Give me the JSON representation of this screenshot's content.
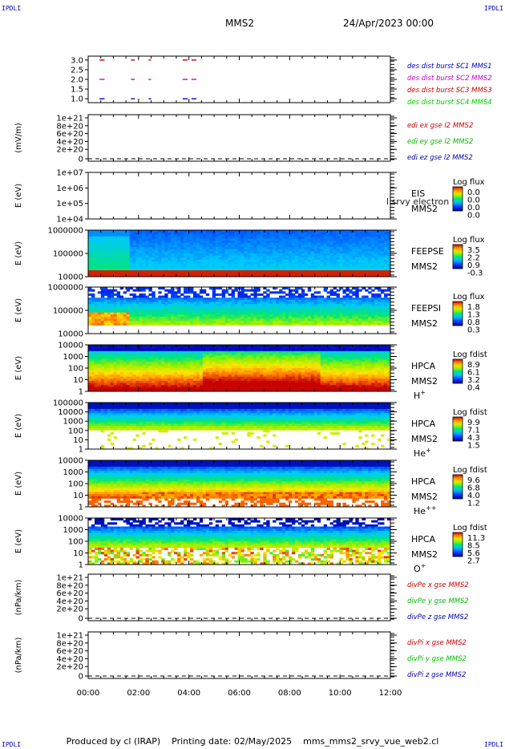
{
  "corner_tag": "IPDLI",
  "header": {
    "mission": "MMS2",
    "date": "24/Apr/2023 00:00"
  },
  "footer": {
    "produced_by": "Produced by cl (IRAP)",
    "printing_date": "Printing date: 02/May/2025",
    "file": "mms_mms2_srvy_vue_web2.cl"
  },
  "chart_data": [
    {
      "id": "burst",
      "type": "scatter",
      "x_axis": {
        "ticks": [
          "00:00",
          "02:00",
          "04:00",
          "06:00",
          "08:00",
          "10:00",
          "12:00"
        ],
        "range_hours": [
          0,
          12
        ]
      },
      "yticks": [
        "3.0",
        "2.5",
        "2.0",
        "1.5",
        "1.0"
      ],
      "ylim": [
        0.8,
        3.2
      ],
      "legend": [
        {
          "label": "des dist burst SC1 MMS1",
          "color": "#0000cc"
        },
        {
          "label": "des dist burst SC2 MMS2",
          "color": "#cc00cc"
        },
        {
          "label": "des dist burst SC3 MMS3",
          "color": "#cc0000"
        },
        {
          "label": "des dist burst SC4 MMS4",
          "color": "#00cc00"
        }
      ],
      "series": [
        {
          "level": 3.0,
          "color": "#cc0000",
          "intervals_hours": [
            [
              0.45,
              0.65
            ],
            [
              1.7,
              1.85
            ],
            [
              2.4,
              2.5
            ],
            [
              3.75,
              3.95
            ],
            [
              4.1,
              4.3
            ]
          ]
        },
        {
          "level": 2.0,
          "color": "#cc00cc",
          "intervals_hours": [
            [
              0.45,
              0.65
            ],
            [
              1.7,
              1.85
            ],
            [
              2.4,
              2.5
            ],
            [
              3.75,
              3.95
            ],
            [
              4.1,
              4.3
            ]
          ]
        },
        {
          "level": 1.0,
          "color": "#0000cc",
          "intervals_hours": [
            [
              0.45,
              0.65
            ],
            [
              1.7,
              1.85
            ],
            [
              2.4,
              2.5
            ],
            [
              3.75,
              3.95
            ],
            [
              4.1,
              4.3
            ]
          ]
        }
      ]
    },
    {
      "id": "edi",
      "type": "line",
      "ylabel": "(mV/m)",
      "yticks": [
        "1e+21",
        "8e+20",
        "6e+20",
        "4e+20",
        "2e+20",
        "0"
      ],
      "legend": [
        {
          "label": "edi ex gse l2 MMS2",
          "color": "#cc0000"
        },
        {
          "label": "edi ey gse l2 MMS2",
          "color": "#00bb00"
        },
        {
          "label": "edi ez gse l2 MMS2",
          "color": "#0000aa"
        }
      ]
    },
    {
      "id": "eis",
      "type": "heatmap",
      "ylabel": "E (eV)",
      "yticks": [
        "1e+07",
        "1e+06",
        "1e+05",
        "1e+04"
      ],
      "instrument": [
        "EIS",
        "MMS2"
      ],
      "overlay_text": "l srvy electron to",
      "cbar_title": "Log flux",
      "cbar_ticks": [
        "0.0",
        "0.0",
        "0.0",
        "0.0"
      ]
    },
    {
      "id": "feepse",
      "type": "heatmap",
      "ylabel": "E (eV)",
      "yticks": [
        "1000000",
        "100000",
        "10000"
      ],
      "instrument": [
        "FEEPSE",
        "MMS2"
      ],
      "cbar_title": "Log flux",
      "cbar_ticks": [
        "3.5",
        "2.2",
        "0.9",
        "-0.3"
      ]
    },
    {
      "id": "feepsi",
      "type": "heatmap",
      "ylabel": "E (eV)",
      "yticks": [
        "1000000",
        "100000",
        "10000"
      ],
      "instrument": [
        "FEEPSI",
        "MMS2"
      ],
      "cbar_title": "Log flux",
      "cbar_ticks": [
        "1.8",
        "1.3",
        "0.8",
        "0.3"
      ]
    },
    {
      "id": "hpca_h",
      "type": "heatmap",
      "ylabel": "E (eV)",
      "yticks": [
        "10000",
        "1000",
        "100",
        "10",
        "1"
      ],
      "instrument": [
        "HPCA",
        "MMS2"
      ],
      "species": "H",
      "species_sup": "+",
      "cbar_title": "Log fdist",
      "cbar_ticks": [
        "8.9",
        "6.1",
        "3.2",
        "0.4"
      ]
    },
    {
      "id": "hpca_he",
      "type": "heatmap",
      "ylabel": "E (eV)",
      "yticks": [
        "100000",
        "10000",
        "1000",
        "100",
        "10",
        "1"
      ],
      "instrument": [
        "HPCA",
        "MMS2"
      ],
      "species": "He",
      "species_sup": "+",
      "cbar_title": "Log fdist",
      "cbar_ticks": [
        "9.9",
        "7.1",
        "4.3",
        "1.5"
      ]
    },
    {
      "id": "hpca_hepp",
      "type": "heatmap",
      "ylabel": "E (eV)",
      "yticks": [
        "10000",
        "1000",
        "100",
        "10",
        "1"
      ],
      "instrument": [
        "HPCA",
        "MMS2"
      ],
      "species": "He",
      "species_sup": "++",
      "cbar_title": "Log fdist",
      "cbar_ticks": [
        "9.6",
        "6.8",
        "4.0",
        "1.2"
      ]
    },
    {
      "id": "hpca_o",
      "type": "heatmap",
      "ylabel": "E (eV)",
      "yticks": [
        "10000",
        "1000",
        "100",
        "10",
        "1"
      ],
      "instrument": [
        "HPCA",
        "MMS2"
      ],
      "species": "O",
      "species_sup": "+",
      "cbar_title": "Log fdist",
      "cbar_ticks": [
        "11.3",
        "8.5",
        "5.6",
        "2.7"
      ]
    },
    {
      "id": "divpe",
      "type": "line",
      "ylabel": "(nPa/km)",
      "yticks": [
        "1e+21",
        "8e+20",
        "6e+20",
        "4e+20",
        "2e+20",
        "0"
      ],
      "legend": [
        {
          "label": "divPe x gse MMS2",
          "color": "#cc0000"
        },
        {
          "label": "divPe y gse MMS2",
          "color": "#00bb00"
        },
        {
          "label": "divPe z gse MMS2",
          "color": "#0000aa"
        }
      ]
    },
    {
      "id": "divpi",
      "type": "line",
      "ylabel": "(nPa/km)",
      "yticks": [
        "1e+21",
        "8e+20",
        "6e+20",
        "4e+20",
        "2e+20",
        "0"
      ],
      "legend": [
        {
          "label": "divPi x gse MMS2",
          "color": "#cc0000"
        },
        {
          "label": "divPi y gse MMS2",
          "color": "#00bb00"
        },
        {
          "label": "divPi z gse MMS2",
          "color": "#0000aa"
        }
      ]
    }
  ]
}
